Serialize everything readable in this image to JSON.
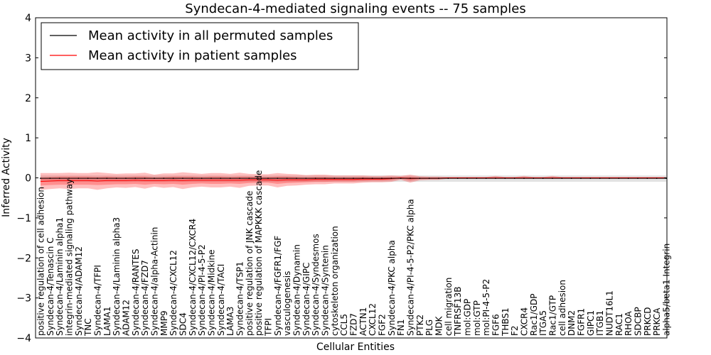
{
  "chart_data": {
    "type": "line",
    "title": "Syndecan-4-mediated signaling events -- 75 samples",
    "xlabel": "Cellular Entities",
    "ylabel": "Inferred Activity",
    "ylim": [
      -4,
      4
    ],
    "yticks": [
      -4,
      -3,
      -2,
      -1,
      0,
      1,
      2,
      3,
      4
    ],
    "legend": {
      "placement": "top-left",
      "entries": [
        {
          "label": "Mean activity in all permuted samples",
          "color": "#000000"
        },
        {
          "label": "Mean activity in patient samples",
          "color": "#ff0000"
        }
      ]
    },
    "categories": [
      "positive regulation of cell adhesion",
      "Syndecan-4/Tenascin C",
      "Syndecan-4/Laminin alpha1",
      "integrin-mediated signaling pathway",
      "Syndecan-4/ADAM12",
      "TNC",
      "Syndecan-4/TFPI",
      "LAMA1",
      "Syndecan-4/Laminin alpha3",
      "ADAM12",
      "Syndecan-4/RANTES",
      "Syndecan-4/FZD7",
      "Syndecan-4/alpha-Actinin",
      "MMP9",
      "Syndecan-4/CXCL12",
      "SDC4",
      "Syndecan-4/CXCL12/CXCR4",
      "Syndecan-4/PI-4-5-P2",
      "Syndecan-4/Midkine",
      "Syndecan-4/TACI",
      "LAMA3",
      "Syndecan-4/TSP1",
      "positive regulation of JNK cascade",
      "positive regulation of MAPKKK cascade",
      "TFPI",
      "Syndecan-4/FGFR1/FGF",
      "vasculogenesis",
      "Syndecan-4/Dynamin",
      "Syndecan-4/GIPC",
      "Syndecan-4/Syndesmos",
      "Syndecan-4/Syntenin",
      "cytoskeleton organization",
      "CCL5",
      "FZD7",
      "ACTN1",
      "CXCL12",
      "FGF2",
      "Syndecan-4/PKC alpha",
      "FN1",
      "Syndecan-4/PI-4-5-P2/PKC alpha",
      "PTK2",
      "PLG",
      "MDK",
      "cell migration",
      "TNFRSF13B",
      "mol:GDP",
      "mol:GTP",
      "mol:PI-4-5-P2",
      "FGF6",
      "THBS1",
      "F2",
      "CXCR4",
      "Rac1/GDP",
      "ITGA5",
      "Rac1/GTP",
      "cell adhesion",
      "DNM2",
      "FGFR1",
      "GIPC1",
      "ITGB1",
      "NUDT16L1",
      "RAC1",
      "RHOA",
      "SDCBP",
      "PRKCD",
      "PRKCA",
      "alpha5/beta1 Integrin"
    ],
    "series": [
      {
        "name": "Mean activity in all permuted samples",
        "color": "#000000",
        "values": [
          -0.01,
          -0.01,
          -0.01,
          -0.01,
          -0.01,
          -0.01,
          -0.01,
          -0.01,
          -0.01,
          -0.01,
          -0.01,
          -0.01,
          -0.01,
          -0.01,
          -0.01,
          -0.01,
          -0.01,
          -0.01,
          -0.01,
          -0.01,
          -0.01,
          -0.01,
          -0.01,
          -0.01,
          -0.01,
          -0.01,
          -0.01,
          -0.01,
          -0.01,
          -0.01,
          -0.01,
          -0.01,
          -0.01,
          -0.01,
          -0.01,
          -0.01,
          -0.01,
          -0.01,
          -0.01,
          -0.01,
          -0.01,
          -0.01,
          -0.01,
          -0.01,
          -0.01,
          -0.01,
          -0.01,
          -0.01,
          -0.01,
          -0.01,
          -0.01,
          -0.01,
          -0.01,
          -0.01,
          -0.01,
          -0.01,
          -0.01,
          -0.01,
          -0.01,
          -0.01,
          -0.01,
          -0.01,
          -0.01,
          -0.01,
          -0.01,
          -0.01,
          -0.01
        ],
        "band_lower": [
          -0.1,
          -0.1,
          -0.1,
          -0.1,
          -0.1,
          -0.1,
          -0.1,
          -0.1,
          -0.1,
          -0.1,
          -0.1,
          -0.1,
          -0.1,
          -0.1,
          -0.1,
          -0.1,
          -0.1,
          -0.1,
          -0.1,
          -0.1,
          -0.1,
          -0.1,
          -0.1,
          -0.1,
          -0.1,
          -0.1,
          -0.1,
          -0.1,
          -0.1,
          -0.1,
          -0.1,
          -0.1,
          -0.1,
          -0.1,
          -0.1,
          -0.1,
          -0.1,
          -0.1,
          -0.1,
          -0.1,
          -0.1,
          -0.1,
          -0.1,
          -0.1,
          -0.1,
          -0.1,
          -0.1,
          -0.1,
          -0.1,
          -0.1,
          -0.1,
          -0.1,
          -0.1,
          -0.1,
          -0.1,
          -0.1,
          -0.1,
          -0.1,
          -0.1,
          -0.1,
          -0.1,
          -0.1,
          -0.1,
          -0.1,
          -0.1,
          -0.1,
          -0.1
        ],
        "band_upper": [
          0.06,
          0.06,
          0.06,
          0.06,
          0.06,
          0.06,
          0.06,
          0.06,
          0.06,
          0.06,
          0.06,
          0.06,
          0.06,
          0.06,
          0.06,
          0.06,
          0.06,
          0.06,
          0.06,
          0.06,
          0.06,
          0.06,
          0.06,
          0.06,
          0.06,
          0.06,
          0.06,
          0.06,
          0.06,
          0.06,
          0.06,
          0.06,
          0.06,
          0.06,
          0.06,
          0.06,
          0.06,
          0.06,
          0.06,
          0.06,
          0.06,
          0.06,
          0.06,
          0.06,
          0.06,
          0.06,
          0.06,
          0.06,
          0.06,
          0.06,
          0.06,
          0.06,
          0.06,
          0.06,
          0.06,
          0.06,
          0.06,
          0.06,
          0.06,
          0.06,
          0.06,
          0.06,
          0.06,
          0.06,
          0.06,
          0.06,
          0.06
        ]
      },
      {
        "name": "Mean activity in patient samples",
        "color": "#ff0000",
        "values": [
          -0.09,
          -0.08,
          -0.07,
          -0.07,
          -0.07,
          -0.07,
          -0.08,
          -0.07,
          -0.07,
          -0.07,
          -0.06,
          -0.07,
          -0.07,
          -0.07,
          -0.06,
          -0.07,
          -0.06,
          -0.06,
          -0.06,
          -0.06,
          -0.06,
          -0.06,
          -0.05,
          -0.05,
          -0.05,
          -0.06,
          -0.05,
          -0.05,
          -0.05,
          -0.04,
          -0.04,
          -0.04,
          -0.04,
          -0.04,
          -0.03,
          -0.03,
          -0.03,
          -0.02,
          0,
          -0.02,
          -0.01,
          -0.01,
          -0.01,
          0,
          0,
          0,
          0,
          0,
          0,
          0,
          0,
          0,
          0,
          0,
          0,
          0,
          0,
          0,
          0,
          0,
          0,
          0,
          0,
          0,
          0,
          0,
          0
        ],
        "inner_lower": [
          -0.19,
          -0.18,
          -0.17,
          -0.17,
          -0.17,
          -0.17,
          -0.18,
          -0.17,
          -0.16,
          -0.16,
          -0.15,
          -0.17,
          -0.15,
          -0.16,
          -0.15,
          -0.17,
          -0.15,
          -0.14,
          -0.15,
          -0.15,
          -0.14,
          -0.15,
          -0.13,
          -0.12,
          -0.12,
          -0.15,
          -0.13,
          -0.12,
          -0.11,
          -0.1,
          -0.1,
          -0.09,
          -0.09,
          -0.09,
          -0.08,
          -0.07,
          -0.07,
          -0.06,
          -0.02,
          -0.07,
          -0.03,
          -0.03,
          -0.03,
          -0.01,
          -0.01,
          -0.01,
          -0.01,
          -0.01,
          -0.01,
          -0.01,
          -0.01,
          -0.01,
          -0.01,
          -0.01,
          -0.01,
          -0.01,
          -0.01,
          -0.01,
          -0.01,
          -0.01,
          -0.01,
          -0.01,
          -0.01,
          -0.01,
          -0.01,
          -0.01,
          -0.01
        ],
        "inner_upper": [
          0.01,
          0.02,
          0.03,
          0.03,
          0.03,
          0.03,
          0.02,
          0.03,
          0.02,
          0.02,
          0.03,
          0.03,
          0.01,
          0.02,
          0.03,
          0.03,
          0.03,
          0.02,
          0.03,
          0.03,
          0.02,
          0.03,
          0.03,
          0.02,
          0.02,
          0.03,
          0.03,
          0.02,
          0.01,
          0.02,
          0.02,
          0.01,
          0.01,
          0.01,
          0.02,
          0.01,
          0.01,
          0.02,
          0.02,
          0.03,
          0.01,
          0.01,
          0.01,
          0.01,
          0.01,
          0.01,
          0.01,
          0.01,
          0.01,
          0.01,
          0.01,
          0.01,
          0.01,
          0.01,
          0.01,
          0.01,
          0.01,
          0.01,
          0.01,
          0.01,
          0.01,
          0.01,
          0.01,
          0.01,
          0.01,
          0.01,
          0.01
        ],
        "outer_lower": [
          -0.3,
          -0.28,
          -0.26,
          -0.28,
          -0.26,
          -0.26,
          -0.3,
          -0.26,
          -0.24,
          -0.25,
          -0.23,
          -0.27,
          -0.22,
          -0.25,
          -0.23,
          -0.28,
          -0.24,
          -0.22,
          -0.24,
          -0.24,
          -0.22,
          -0.25,
          -0.2,
          -0.19,
          -0.19,
          -0.24,
          -0.2,
          -0.19,
          -0.17,
          -0.16,
          -0.16,
          -0.14,
          -0.14,
          -0.14,
          -0.12,
          -0.11,
          -0.11,
          -0.1,
          -0.05,
          -0.12,
          -0.06,
          -0.05,
          -0.05,
          -0.02,
          -0.02,
          -0.02,
          -0.02,
          -0.02,
          -0.02,
          -0.02,
          -0.02,
          -0.02,
          -0.02,
          -0.02,
          -0.02,
          -0.02,
          -0.02,
          -0.02,
          -0.02,
          -0.02,
          -0.02,
          -0.02,
          -0.02,
          -0.02,
          -0.02,
          -0.02,
          -0.02
        ],
        "outer_upper": [
          0.12,
          0.12,
          0.12,
          0.13,
          0.12,
          0.12,
          0.14,
          0.12,
          0.1,
          0.11,
          0.11,
          0.13,
          0.08,
          0.11,
          0.11,
          0.14,
          0.12,
          0.1,
          0.12,
          0.12,
          0.1,
          0.13,
          0.1,
          0.09,
          0.09,
          0.12,
          0.1,
          0.09,
          0.07,
          0.08,
          0.08,
          0.06,
          0.06,
          0.06,
          0.06,
          0.05,
          0.05,
          0.06,
          0.05,
          0.08,
          0.04,
          0.03,
          0.03,
          0.02,
          0.02,
          0.02,
          0.02,
          0.02,
          0.05,
          0.02,
          0.02,
          0.05,
          0.02,
          0.02,
          0.05,
          0.02,
          0.02,
          0.02,
          0.02,
          0.02,
          0.02,
          0.02,
          0.02,
          0.02,
          0.02,
          0.02,
          0.02
        ]
      }
    ]
  }
}
